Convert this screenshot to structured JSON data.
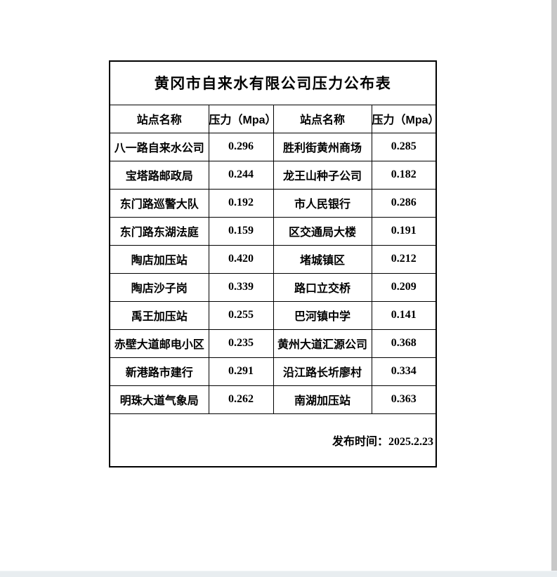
{
  "document": {
    "title": "黄冈市自来水有限公司压力公布表",
    "publish_date": "发布时间：2025.2.23"
  },
  "table": {
    "headers": [
      "站点名称",
      "压力（Mpa）",
      "站点名称",
      "压力（Mpa）"
    ],
    "rows": [
      [
        "八一路自来水公司",
        "0.296",
        "胜利街黄州商场",
        "0.285"
      ],
      [
        "宝塔路邮政局",
        "0.244",
        "龙王山种子公司",
        "0.182"
      ],
      [
        "东门路巡警大队",
        "0.192",
        "市人民银行",
        "0.286"
      ],
      [
        "东门路东湖法庭",
        "0.159",
        "区交通局大楼",
        "0.191"
      ],
      [
        "陶店加压站",
        "0.420",
        "堵城镇区",
        "0.212"
      ],
      [
        "陶店沙子岗",
        "0.339",
        "路口立交桥",
        "0.209"
      ],
      [
        "禹王加压站",
        "0.255",
        "巴河镇中学",
        "0.141"
      ],
      [
        "赤壁大道邮电小区",
        "0.235",
        "黄州大道汇源公司",
        "0.368"
      ],
      [
        "新港路市建行",
        "0.291",
        "沿江路长圻廖村",
        "0.334"
      ],
      [
        "明珠大道气象局",
        "0.262",
        "南湖加压站",
        "0.363"
      ]
    ]
  },
  "colors": {
    "page_background": "#ffffff",
    "table_border": "#000000",
    "text": "#000000",
    "window_edge_gray": "#c8c8c8",
    "scrollbar_track": "#e8edf0"
  }
}
